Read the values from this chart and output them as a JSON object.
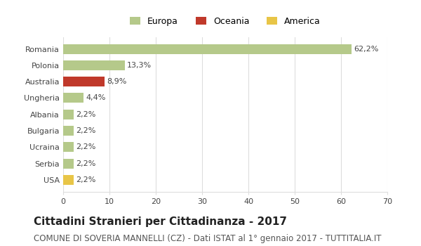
{
  "categories": [
    "Romania",
    "Polonia",
    "Australia",
    "Ungheria",
    "Albania",
    "Bulgaria",
    "Ucraina",
    "Serbia",
    "USA"
  ],
  "values": [
    62.2,
    13.3,
    8.9,
    4.4,
    2.2,
    2.2,
    2.2,
    2.2,
    2.2
  ],
  "labels": [
    "62,2%",
    "13,3%",
    "8,9%",
    "4,4%",
    "2,2%",
    "2,2%",
    "2,2%",
    "2,2%",
    "2,2%"
  ],
  "bar_colors": [
    "#b5c98a",
    "#b5c98a",
    "#c0392b",
    "#b5c98a",
    "#b5c98a",
    "#b5c98a",
    "#b5c98a",
    "#b5c98a",
    "#e8c547"
  ],
  "legend_labels": [
    "Europa",
    "Oceania",
    "America"
  ],
  "legend_colors": [
    "#b5c98a",
    "#c0392b",
    "#e8c547"
  ],
  "xlim": [
    0,
    70
  ],
  "xticks": [
    0,
    10,
    20,
    30,
    40,
    50,
    60,
    70
  ],
  "title": "Cittadini Stranieri per Cittadinanza - 2017",
  "subtitle": "COMUNE DI SOVERIA MANNELLI (CZ) - Dati ISTAT al 1° gennaio 2017 - TUTTITALIA.IT",
  "background_color": "#ffffff",
  "grid_color": "#dddddd",
  "title_fontsize": 11,
  "subtitle_fontsize": 8.5,
  "label_fontsize": 8,
  "tick_fontsize": 8,
  "legend_fontsize": 9
}
